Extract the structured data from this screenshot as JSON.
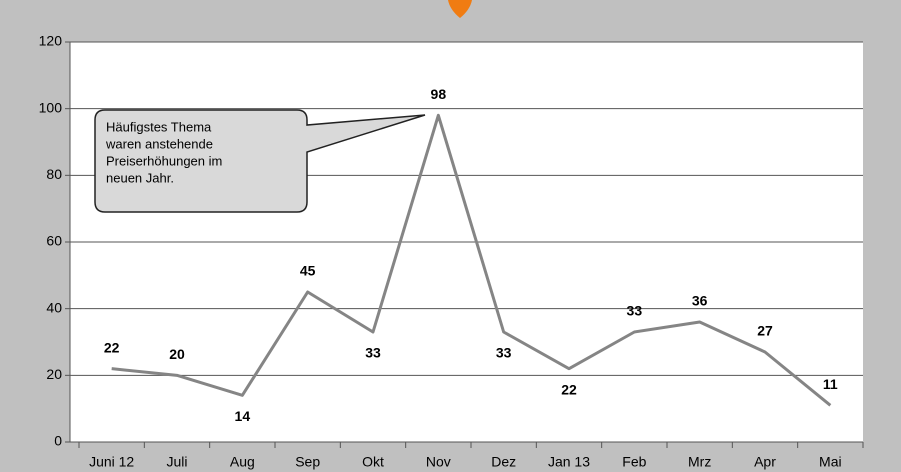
{
  "chart_data": {
    "type": "line",
    "categories": [
      "Juni 12",
      "Juli",
      "Aug",
      "Sep",
      "Okt",
      "Nov",
      "Dez",
      "Jan 13",
      "Feb",
      "Mrz",
      "Apr",
      "Mai"
    ],
    "values": [
      22,
      20,
      14,
      45,
      33,
      98,
      33,
      22,
      33,
      36,
      27,
      11
    ],
    "color": "#858585",
    "ylim": [
      0,
      120
    ],
    "yticks": [
      0,
      20,
      40,
      60,
      80,
      100,
      120
    ],
    "grid": true,
    "annotation": [
      "Häufigstes Thema",
      "waren anstehende",
      "Preiserhöhungen im",
      "neuen Jahr."
    ]
  }
}
